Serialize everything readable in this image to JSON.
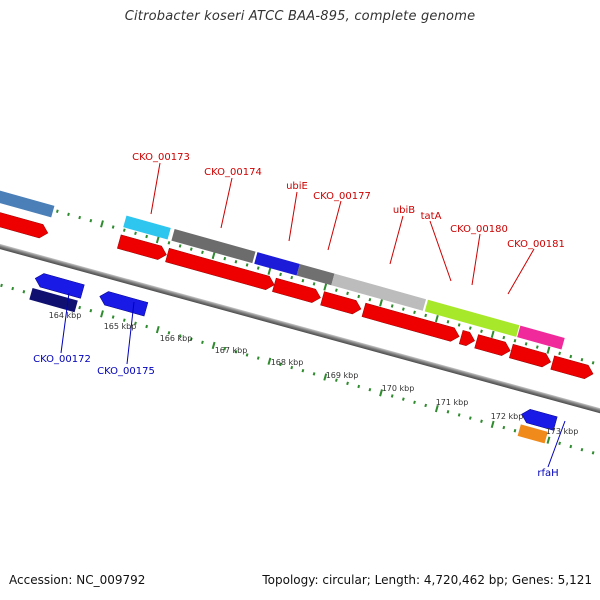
{
  "header": {
    "title": "Citrobacter koseri ATCC BAA-895, complete genome"
  },
  "footer": {
    "accession": "Accession: NC_009792",
    "topology": "Topology: circular; Length: 4,720,462 bp; Genes: 5,121"
  },
  "colors": {
    "forward_label": "#cc0000",
    "reverse_label": "#0000bb",
    "tick": "#1f7a1f",
    "backbone": "#8c8c8c"
  },
  "scale": {
    "unit": "kbp",
    "labels": [
      "164 kbp",
      "165 kbp",
      "166 kbp",
      "167 kbp",
      "168 kbp",
      "169 kbp",
      "170 kbp",
      "171 kbp",
      "172 kbp",
      "173 kbp"
    ]
  },
  "labels_forward": [
    "CKO_00173",
    "CKO_00174",
    "ubiE",
    "CKO_00177",
    "ubiB",
    "tatA",
    "CKO_00180",
    "CKO_00181"
  ],
  "labels_reverse": [
    "CKO_00172",
    "CKO_00175",
    "rfaH"
  ]
}
